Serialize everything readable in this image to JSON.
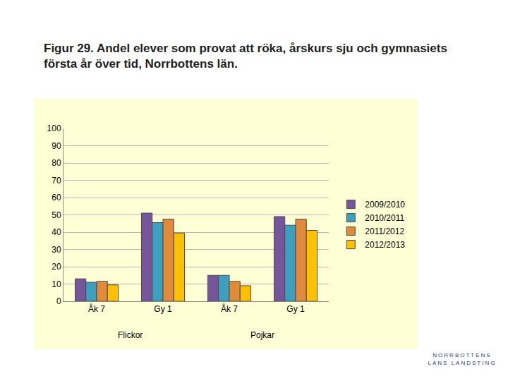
{
  "chart_data": {
    "type": "bar",
    "title": "Figur 29. Andel elever som provat att röka, årskurs sju och gymnasiets första år över tid, Norrbottens län.",
    "categories": [
      "Åk 7",
      "Gy 1",
      "Åk 7",
      "Gy 1"
    ],
    "group_labels": [
      "Flickor",
      "Flickor",
      "Pojkar",
      "Pojkar"
    ],
    "series": [
      {
        "name": "2009/2010",
        "color": "#76569a",
        "values": [
          13,
          51,
          15,
          49
        ]
      },
      {
        "name": "2010/2011",
        "color": "#3f9fbf",
        "values": [
          11,
          45.5,
          15,
          44
        ]
      },
      {
        "name": "2011/2012",
        "color": "#e08a3c",
        "values": [
          11.5,
          47.5,
          11.5,
          47.5
        ]
      },
      {
        "name": "2012/2013",
        "color": "#ffc000",
        "values": [
          9.5,
          39.5,
          9,
          41
        ]
      }
    ],
    "ylim": [
      0,
      100
    ],
    "yticks": [
      0,
      10,
      20,
      30,
      40,
      50,
      60,
      70,
      80,
      90,
      100
    ],
    "grid": true,
    "legend": "right",
    "annotations": [
      "NORRBOTTENS",
      "LÄNS LANDSTING"
    ]
  }
}
